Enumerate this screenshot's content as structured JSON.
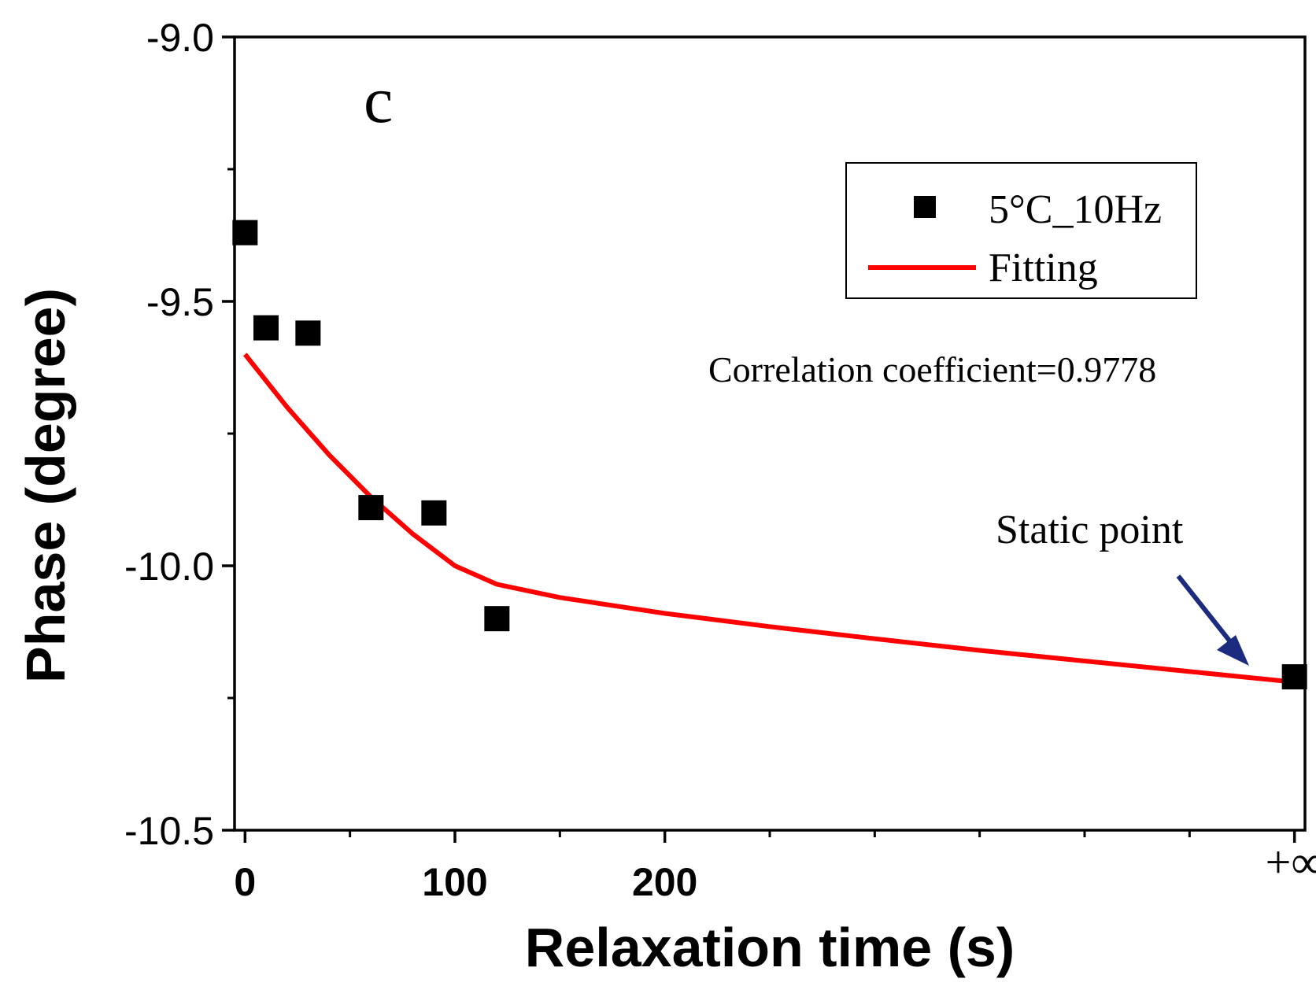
{
  "chart_data": {
    "type": "scatter",
    "panel_label": "c",
    "xlabel": "Relaxation time (s)",
    "ylabel": "Phase (degree)",
    "ylim": [
      -10.5,
      -9.0
    ],
    "xlim": [
      -5,
      505
    ],
    "x_ticks": [
      {
        "value": 0,
        "label": "0"
      },
      {
        "value": 100,
        "label": "100"
      },
      {
        "value": 200,
        "label": "200"
      },
      {
        "value": 500,
        "label": "+∞"
      }
    ],
    "x_minor_ticks": [
      50,
      150,
      250,
      300,
      350,
      400,
      450
    ],
    "y_ticks": [
      {
        "value": -9.0,
        "label": "-9.0"
      },
      {
        "value": -9.5,
        "label": "-9.5"
      },
      {
        "value": -10.0,
        "label": "-10.0"
      },
      {
        "value": -10.5,
        "label": "-10.5"
      }
    ],
    "y_minor_ticks": [
      -9.25,
      -9.75,
      -10.25
    ],
    "series": [
      {
        "name": "5°C_10Hz",
        "kind": "scatter",
        "color": "#000000",
        "x": [
          0,
          10,
          30,
          60,
          90,
          120,
          500
        ],
        "y": [
          -9.37,
          -9.55,
          -9.56,
          -9.89,
          -9.9,
          -10.1,
          -10.21
        ]
      },
      {
        "name": "Fitting",
        "kind": "line",
        "color": "#ff0000",
        "x": [
          0,
          20,
          40,
          60,
          80,
          100,
          120,
          150,
          200,
          250,
          300,
          350,
          400,
          450,
          500
        ],
        "y": [
          -9.6,
          -9.7,
          -9.79,
          -9.87,
          -9.94,
          -10.0,
          -10.035,
          -10.06,
          -10.09,
          -10.115,
          -10.138,
          -10.16,
          -10.18,
          -10.2,
          -10.22
        ]
      }
    ],
    "legend_position": "top-right",
    "annotations": {
      "correlation": "Correlation coefficient=0.9778",
      "static_point": "Static point",
      "arrow_color": "#1c2a80"
    }
  }
}
